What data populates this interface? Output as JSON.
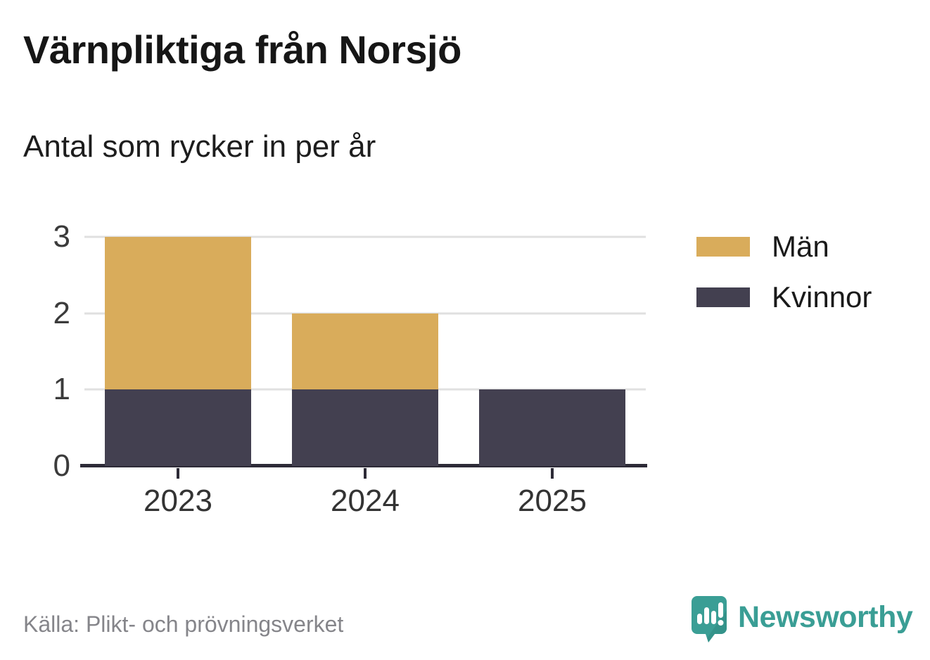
{
  "title": "Värnpliktiga från Norsjö",
  "subtitle": "Antal som rycker in per år",
  "source": "Källa: Plikt- och prövningsverket",
  "brand": {
    "name": "Newsworthy",
    "color": "#3a9e95",
    "icon": "speech-bubble-bar-chart-icon"
  },
  "chart_data": {
    "type": "bar",
    "stacked": true,
    "title": "Värnpliktiga från Norsjö",
    "subtitle": "Antal som rycker in per år",
    "categories": [
      "2023",
      "2024",
      "2025"
    ],
    "series": [
      {
        "name": "Män",
        "color": "#d9ac5b",
        "values": [
          2,
          1,
          0
        ]
      },
      {
        "name": "Kvinnor",
        "color": "#434050",
        "values": [
          1,
          1,
          1
        ]
      }
    ],
    "totals": [
      3,
      2,
      1
    ],
    "xlabel": "",
    "ylabel": "",
    "ylim": [
      0,
      3
    ],
    "yticks": [
      0,
      1,
      2,
      3
    ],
    "grid": true,
    "gridline_color": "#e0e0e0",
    "axis_color": "#2d2b37",
    "legend_position": "right"
  }
}
